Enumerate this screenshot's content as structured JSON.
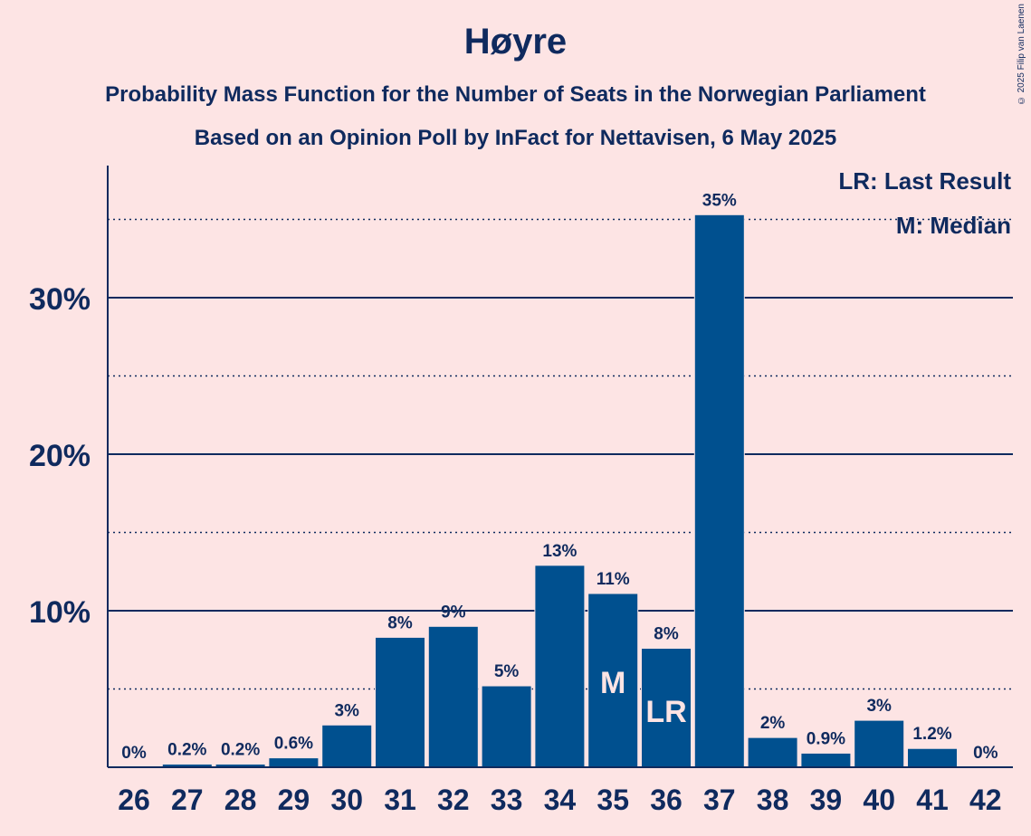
{
  "title": "Høyre",
  "subtitle_1": "Probability Mass Function for the Number of Seats in the Norwegian Parliament",
  "subtitle_2": "Based on an Opinion Poll by InFact for Nettavisen, 6 May 2025",
  "copyright": "© 2025 Filip van Laenen",
  "legend": {
    "last_result": "LR: Last Result",
    "median": "M: Median"
  },
  "colors": {
    "bar": "#00508f",
    "axis": "#0f2a5e",
    "background": "#fde4e4",
    "bar_label_inside": "#fde4e4"
  },
  "chart_data": {
    "type": "bar",
    "categories": [
      "26",
      "27",
      "28",
      "29",
      "30",
      "31",
      "32",
      "33",
      "34",
      "35",
      "36",
      "37",
      "38",
      "39",
      "40",
      "41",
      "42"
    ],
    "values": [
      0,
      0.2,
      0.2,
      0.6,
      2.7,
      8.3,
      9.0,
      5.2,
      12.9,
      11.1,
      7.6,
      35.3,
      1.9,
      0.9,
      3.0,
      1.2,
      0
    ],
    "labels": [
      "0%",
      "0.2%",
      "0.2%",
      "0.6%",
      "3%",
      "8%",
      "9%",
      "5%",
      "13%",
      "11%",
      "8%",
      "35%",
      "2%",
      "0.9%",
      "3%",
      "1.2%",
      "0%"
    ],
    "ylim": [
      0,
      38.5
    ],
    "yticks": [
      10,
      20,
      30
    ],
    "ytick_labels": [
      "10%",
      "20%",
      "30%"
    ],
    "minor_gridlines": [
      5,
      15,
      25,
      35
    ],
    "markers": [
      {
        "category": "35",
        "text": "M"
      },
      {
        "category": "36",
        "text": "LR"
      }
    ]
  }
}
